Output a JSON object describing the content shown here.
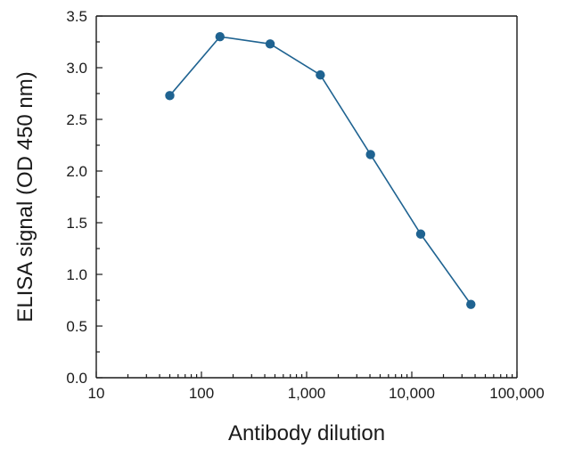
{
  "chart_data": {
    "type": "line",
    "title": "",
    "xlabel": "Antibody dilution",
    "ylabel": "ELISA signal (OD 450 nm)",
    "x_scale": "log",
    "xlim": [
      10,
      100000
    ],
    "ylim": [
      0,
      3.5
    ],
    "x_ticks": [
      10,
      100,
      1000,
      10000,
      100000
    ],
    "x_tick_labels": [
      "10",
      "100",
      "1,000",
      "10,000",
      "100,000"
    ],
    "y_ticks": [
      0,
      0.5,
      1,
      1.5,
      2,
      2.5,
      3,
      3.5
    ],
    "y_tick_labels": [
      "0.0",
      "0.5",
      "1.0",
      "1.5",
      "2.0",
      "2.5",
      "3.0",
      "3.5"
    ],
    "grid": false,
    "legend": "none",
    "series": [
      {
        "color": "#1f6391",
        "x": [
          50,
          150,
          450,
          1350,
          4050,
          12150,
          36450
        ],
        "y": [
          2.73,
          3.3,
          3.23,
          2.93,
          2.16,
          1.39,
          0.71
        ]
      }
    ]
  }
}
